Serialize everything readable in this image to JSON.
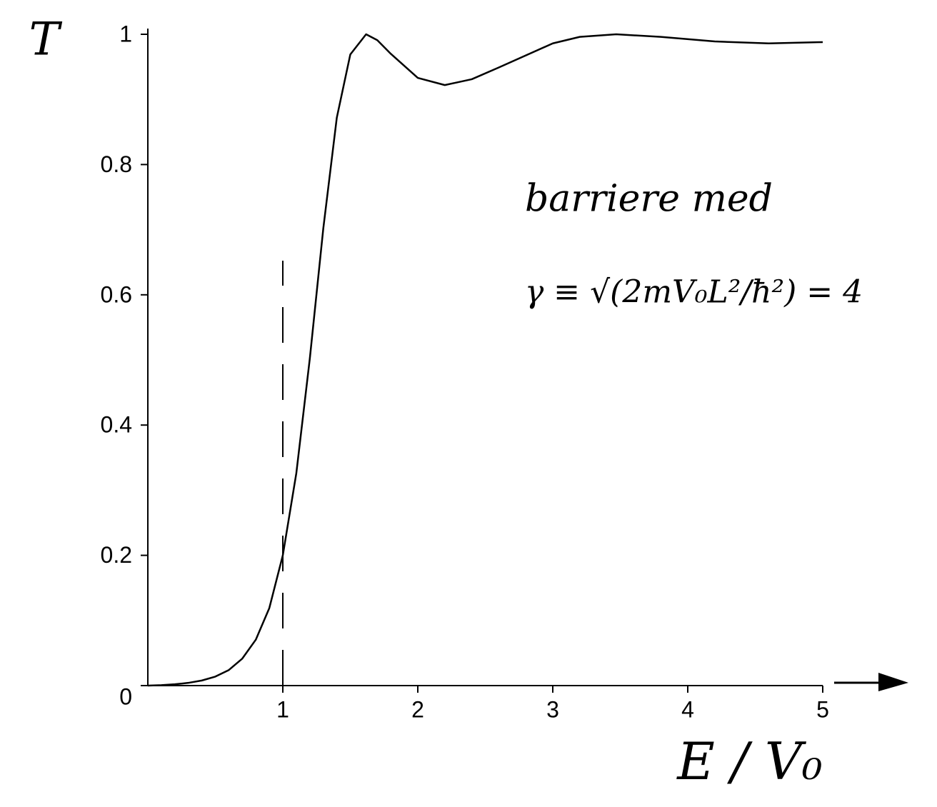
{
  "chart_data": {
    "type": "line",
    "y_label": "T",
    "x_label": "E / V₀",
    "annotations": [
      "barriere med",
      "γ ≡ √(2mV₀L²/ħ²) = 4"
    ],
    "x": [
      0,
      0.1,
      0.2,
      0.3,
      0.4,
      0.5,
      0.6,
      0.7,
      0.8,
      0.9,
      1,
      1.1,
      1.2,
      1.3,
      1.4,
      1.5,
      1.617,
      1.7,
      1.8,
      2,
      2.2,
      2.4,
      2.6,
      3,
      3.2,
      3.47,
      3.8,
      4.2,
      4.6,
      5
    ],
    "series": [
      {
        "name": "T",
        "color": "#000000",
        "values": [
          0,
          0.0007,
          0.002,
          0.0042,
          0.0078,
          0.0138,
          0.0239,
          0.0415,
          0.0705,
          0.119,
          0.2,
          0.326,
          0.502,
          0.702,
          0.872,
          0.969,
          1,
          0.991,
          0.97,
          0.933,
          0.922,
          0.931,
          0.949,
          0.986,
          0.996,
          1,
          0.996,
          0.989,
          0.986,
          0.988
        ]
      }
    ],
    "vline_x": 1,
    "xlim": [
      0,
      5
    ],
    "xticks": [
      1,
      2,
      3,
      4,
      5
    ],
    "ylim": [
      0,
      1
    ],
    "yticks": [
      0,
      0.2,
      0.4,
      0.6,
      0.8,
      1
    ]
  }
}
